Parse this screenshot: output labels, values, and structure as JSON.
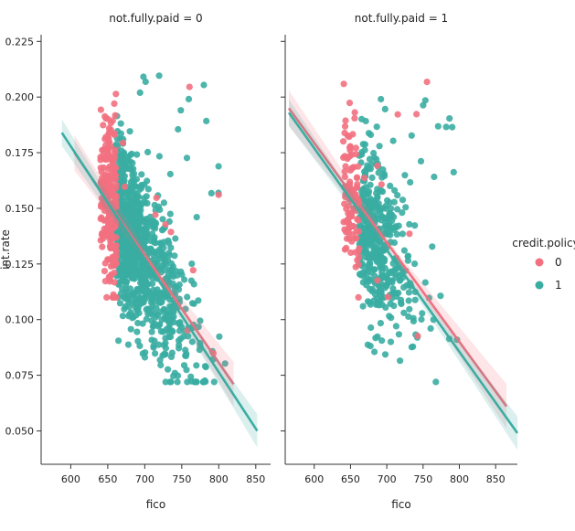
{
  "chart_data": {
    "type": "scatter",
    "panels": [
      {
        "title": "not.fully.paid = 0",
        "xlim": [
          560,
          870
        ],
        "fit": {
          "0": {
            "x0": 605,
            "y0": 0.175,
            "x1": 820,
            "y1": 0.071
          },
          "1": {
            "x0": 588,
            "y0": 0.184,
            "x1": 852,
            "y1": 0.05
          }
        },
        "series": {
          "0": {
            "x_range": [
              640,
              820
            ],
            "y_range": [
              0.06,
              0.212
            ]
          },
          "1": {
            "x_range": [
              612,
              812
            ],
            "y_range": [
              0.06,
              0.212
            ]
          }
        }
      },
      {
        "title": "not.fully.paid = 1",
        "xlim": [
          560,
          880
        ],
        "fit": {
          "0": {
            "x0": 565,
            "y0": 0.195,
            "x1": 865,
            "y1": 0.061
          },
          "1": {
            "x0": 565,
            "y0": 0.193,
            "x1": 880,
            "y1": 0.049
          }
        },
        "series": {
          "0": {
            "x_range": [
              625,
              820
            ],
            "y_range": [
              0.08,
              0.216
            ]
          },
          "1": {
            "x_range": [
              635,
              820
            ],
            "y_range": [
              0.06,
              0.216
            ]
          }
        }
      }
    ],
    "xlabel": "fico",
    "ylabel": "int.rate",
    "xticks": [
      600,
      650,
      700,
      750,
      800,
      850
    ],
    "yticks": [
      0.05,
      0.075,
      0.1,
      0.125,
      0.15,
      0.175,
      0.2,
      0.225
    ],
    "ytick_labels": [
      "0.050",
      "0.075",
      "0.100",
      "0.125",
      "0.150",
      "0.175",
      "0.200",
      "0.225"
    ],
    "ylim": [
      0.035,
      0.228
    ],
    "legend": {
      "title": "credit.policy",
      "placement": "right",
      "entries": [
        {
          "label": "0",
          "color": "#f2707f"
        },
        {
          "label": "1",
          "color": "#3aada2"
        }
      ]
    },
    "colors": {
      "0": "#f2707f",
      "1": "#3aada2"
    }
  }
}
